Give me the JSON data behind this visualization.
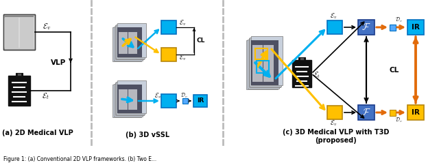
{
  "fig_width": 6.4,
  "fig_height": 2.42,
  "dpi": 100,
  "background": "#ffffff",
  "panel_a_label": "(a) 2D Medical VLP",
  "panel_b_label": "(b) 3D vSSL",
  "panel_c_label": "(c) 3D Medical VLP with T3D\n(proposed)",
  "color_blue": "#4472C4",
  "color_cyan": "#00B0F0",
  "color_orange": "#FFC000",
  "color_dark_orange": "#E26B0A",
  "color_black": "#000000",
  "color_gray_sep": "#aaaaaa",
  "color_vol_face": "#c8d4e8",
  "color_vol_edge": "#666666"
}
